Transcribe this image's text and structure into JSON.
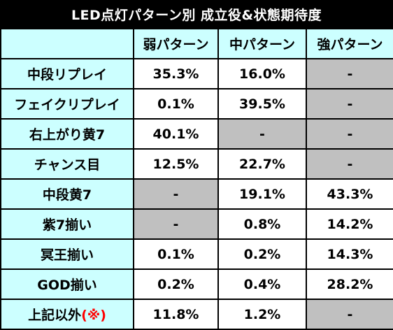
{
  "title": "LED点灯パターン別 成立役&状態期待度",
  "columns": [
    "弱パターン",
    "中パターン",
    "強パターン"
  ],
  "rows": [
    {
      "label": "中段リプレイ",
      "values": [
        "35.3%",
        "16.0%",
        "-"
      ],
      "gray": [
        false,
        false,
        true
      ]
    },
    {
      "label": "フェイクリプレイ",
      "values": [
        "0.1%",
        "39.5%",
        "-"
      ],
      "gray": [
        false,
        false,
        true
      ]
    },
    {
      "label": "右上がり黄7",
      "values": [
        "40.1%",
        "-",
        "-"
      ],
      "gray": [
        false,
        true,
        true
      ]
    },
    {
      "label": "チャンス目",
      "values": [
        "12.5%",
        "22.7%",
        "-"
      ],
      "gray": [
        false,
        false,
        true
      ]
    },
    {
      "label": "中段黄7",
      "values": [
        "-",
        "19.1%",
        "43.3%"
      ],
      "gray": [
        true,
        false,
        false
      ]
    },
    {
      "label": "紫7揃い",
      "values": [
        "-",
        "0.8%",
        "14.2%"
      ],
      "gray": [
        true,
        false,
        false
      ]
    },
    {
      "label": "冥王揃い",
      "values": [
        "0.1%",
        "0.2%",
        "14.3%"
      ],
      "gray": [
        false,
        false,
        false
      ]
    },
    {
      "label": "GOD揃い",
      "values": [
        "0.2%",
        "0.4%",
        "28.2%"
      ],
      "gray": [
        false,
        false,
        false
      ]
    },
    {
      "label": "上記以外",
      "label_mark": "(※)",
      "values": [
        "11.8%",
        "1.2%",
        "-"
      ],
      "gray": [
        false,
        false,
        true
      ]
    }
  ],
  "colors": {
    "header_bg": "#000000",
    "cell_highlight": "#ccffff",
    "na_cell": "#c0c0c0",
    "mark": "#ff0000"
  }
}
